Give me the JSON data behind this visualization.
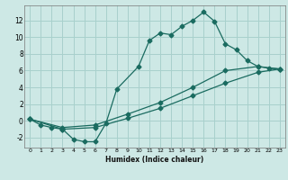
{
  "title": "",
  "xlabel": "Humidex (Indice chaleur)",
  "ylabel": "",
  "background_color": "#cde8e5",
  "grid_color": "#a8d0cc",
  "line_color": "#1a6b60",
  "xlim": [
    -0.5,
    23.5
  ],
  "ylim": [
    -3.2,
    13.8
  ],
  "xticks": [
    0,
    1,
    2,
    3,
    4,
    5,
    6,
    7,
    8,
    9,
    10,
    11,
    12,
    13,
    14,
    15,
    16,
    17,
    18,
    19,
    20,
    21,
    22,
    23
  ],
  "yticks": [
    -2,
    0,
    2,
    4,
    6,
    8,
    10,
    12
  ],
  "line1_x": [
    0,
    1,
    2,
    3,
    4,
    5,
    6,
    7,
    8,
    10,
    11,
    12,
    13,
    14,
    15,
    16,
    17,
    18,
    19,
    20,
    21,
    22,
    23
  ],
  "line1_y": [
    0.2,
    -0.5,
    -0.8,
    -1.0,
    -2.2,
    -2.5,
    -2.5,
    -0.3,
    3.8,
    6.5,
    9.6,
    10.5,
    10.3,
    11.3,
    12.0,
    13.0,
    11.9,
    9.2,
    8.5,
    7.2,
    6.5,
    6.3,
    6.2
  ],
  "line2_x": [
    0,
    3,
    6,
    9,
    12,
    15,
    18,
    21,
    23
  ],
  "line2_y": [
    0.2,
    -1.0,
    -0.8,
    0.3,
    1.5,
    3.0,
    4.5,
    5.8,
    6.2
  ],
  "line3_x": [
    0,
    3,
    6,
    9,
    12,
    15,
    18,
    21,
    23
  ],
  "line3_y": [
    0.2,
    -0.8,
    -0.5,
    0.8,
    2.2,
    4.0,
    6.0,
    6.5,
    6.2
  ]
}
